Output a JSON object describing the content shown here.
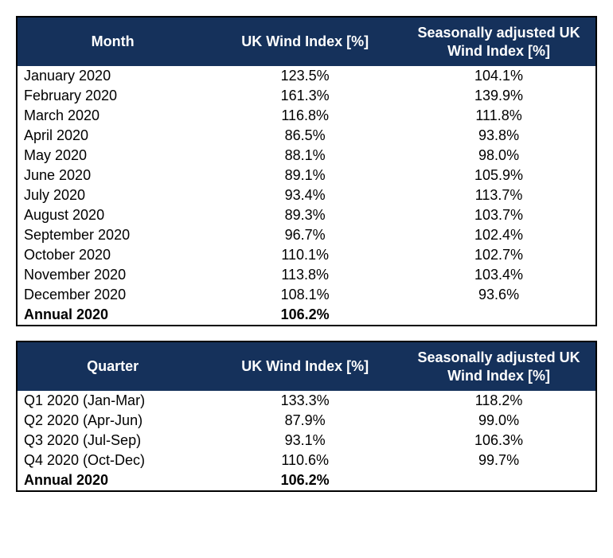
{
  "colors": {
    "header_bg": "#15315b",
    "header_text": "#ffffff",
    "border": "#000000",
    "body_text": "#000000",
    "page_bg": "#ffffff"
  },
  "typography": {
    "font_family": "Verdana, Geneva, sans-serif",
    "header_fontsize_pt": 14,
    "body_fontsize_pt": 14
  },
  "monthly_table": {
    "type": "table",
    "columns": [
      "Month",
      "UK Wind Index [%]",
      "Seasonally adjusted UK Wind Index [%]"
    ],
    "rows": [
      [
        "January 2020",
        "123.5%",
        "104.1%"
      ],
      [
        "February 2020",
        "161.3%",
        "139.9%"
      ],
      [
        "March 2020",
        "116.8%",
        "111.8%"
      ],
      [
        "April 2020",
        "86.5%",
        "93.8%"
      ],
      [
        "May 2020",
        "88.1%",
        "98.0%"
      ],
      [
        "June 2020",
        "89.1%",
        "105.9%"
      ],
      [
        "July 2020",
        "93.4%",
        "113.7%"
      ],
      [
        "August 2020",
        "89.3%",
        "103.7%"
      ],
      [
        "September 2020",
        "96.7%",
        "102.4%"
      ],
      [
        "October 2020",
        "110.1%",
        "102.7%"
      ],
      [
        "November 2020",
        "113.8%",
        "103.4%"
      ],
      [
        "December 2020",
        "108.1%",
        "93.6%"
      ]
    ],
    "total": [
      "Annual 2020",
      "106.2%",
      ""
    ]
  },
  "quarterly_table": {
    "type": "table",
    "columns": [
      "Quarter",
      "UK Wind Index [%]",
      "Seasonally adjusted UK Wind Index [%]"
    ],
    "rows": [
      [
        "Q1 2020 (Jan-Mar)",
        "133.3%",
        "118.2%"
      ],
      [
        "Q2 2020 (Apr-Jun)",
        "87.9%",
        "99.0%"
      ],
      [
        "Q3 2020 (Jul-Sep)",
        "93.1%",
        "106.3%"
      ],
      [
        "Q4 2020 (Oct-Dec)",
        "110.6%",
        "99.7%"
      ]
    ],
    "total": [
      "Annual 2020",
      "106.2%",
      ""
    ]
  }
}
